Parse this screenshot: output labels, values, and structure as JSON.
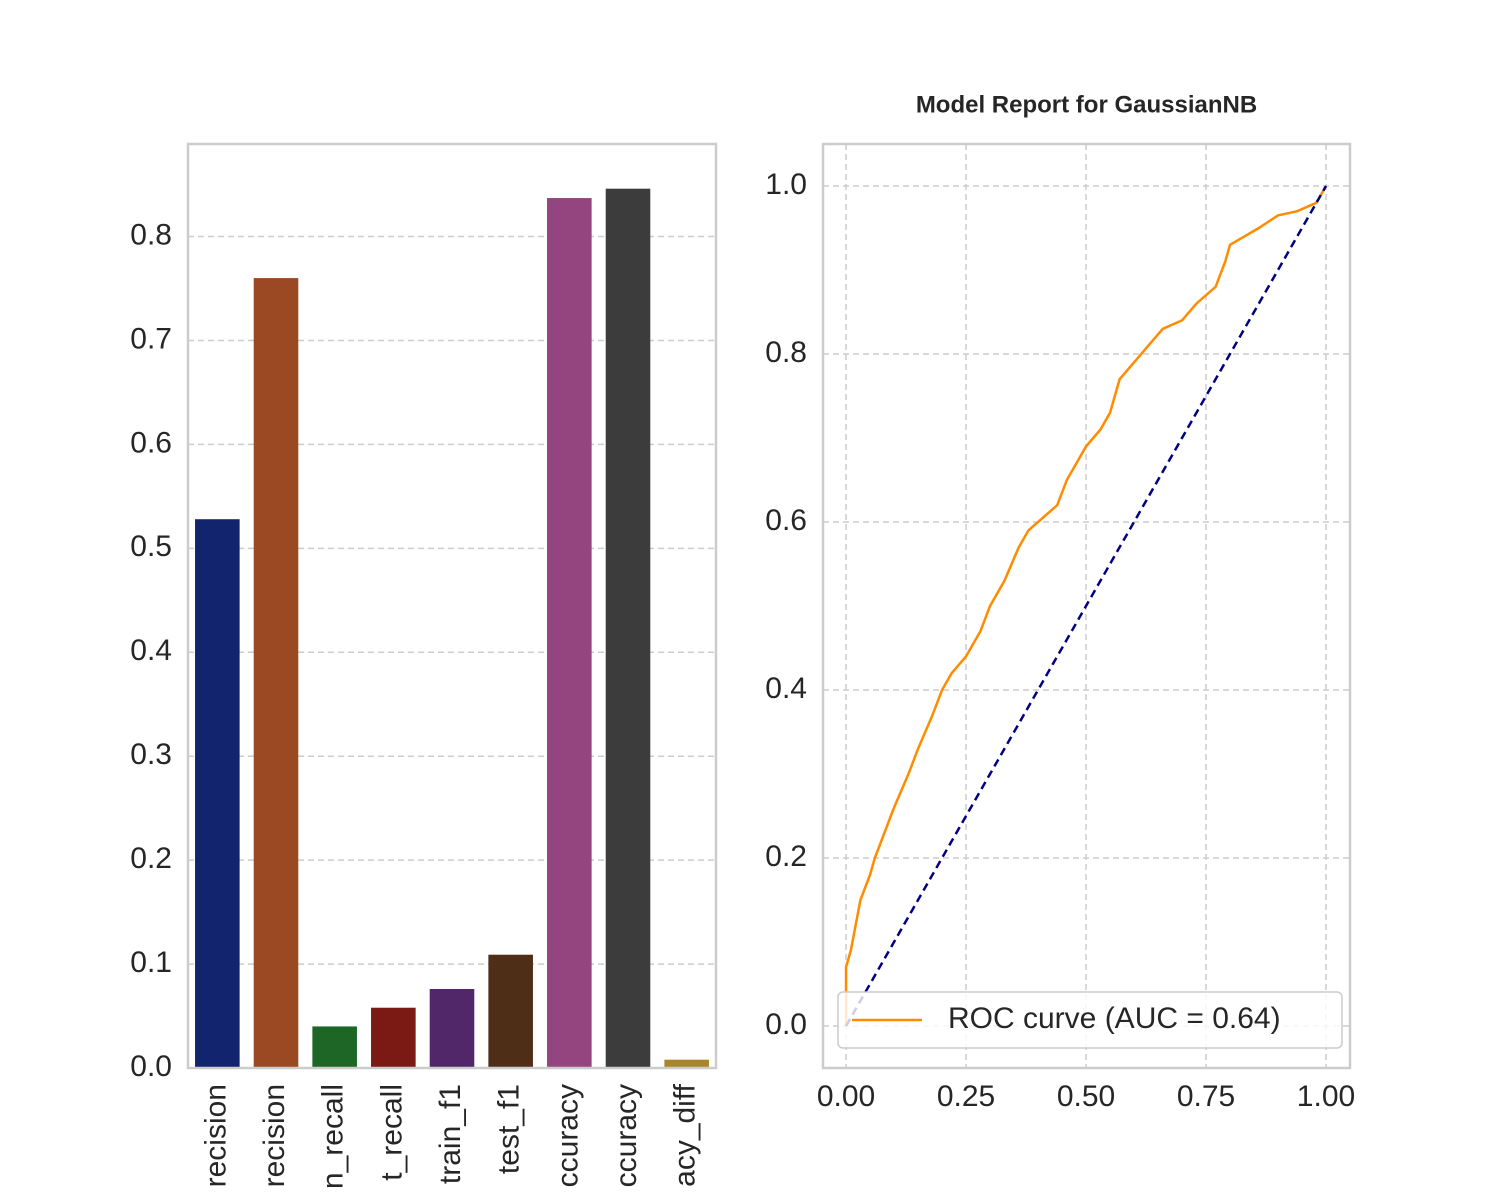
{
  "chart_data": [
    {
      "type": "bar",
      "categories": [
        "recision",
        "recision",
        "n_recall",
        "t_recall",
        "train_f1",
        "test_f1",
        "ccuracy",
        "ccuracy",
        "acy_diff"
      ],
      "values": [
        0.528,
        0.76,
        0.04,
        0.058,
        0.076,
        0.109,
        0.837,
        0.846,
        0.008
      ],
      "colors": [
        "#12246e",
        "#9b4923",
        "#1e6626",
        "#7b1914",
        "#52276a",
        "#4f2e18",
        "#94447e",
        "#3c3c3c",
        "#a8862b"
      ],
      "ylim": [
        0,
        0.889
      ],
      "yticks": [
        {
          "value": 0,
          "label": "0.0"
        },
        0.1,
        0.2,
        0.3,
        0.4,
        0.5,
        0.6,
        0.7,
        0.8
      ],
      "grid": "y"
    },
    {
      "type": "line",
      "title": "Model Report for GaussianNB",
      "series": [
        {
          "name": "ROC curve (AUC = 0.64)",
          "color": "#ff8c00",
          "x": [
            0,
            0,
            0.01,
            0.02,
            0.03,
            0.05,
            0.06,
            0.08,
            0.1,
            0.13,
            0.15,
            0.18,
            0.2,
            0.22,
            0.25,
            0.28,
            0.3,
            0.33,
            0.36,
            0.38,
            0.4,
            0.42,
            0.44,
            0.46,
            0.48,
            0.5,
            0.53,
            0.55,
            0.57,
            0.6,
            0.63,
            0.66,
            0.7,
            0.73,
            0.77,
            0.79,
            0.8,
            0.83,
            0.86,
            0.9,
            0.94,
            0.98,
            1
          ],
          "values": [
            0,
            0.07,
            0.09,
            0.12,
            0.15,
            0.18,
            0.2,
            0.23,
            0.26,
            0.3,
            0.33,
            0.37,
            0.4,
            0.42,
            0.44,
            0.47,
            0.5,
            0.53,
            0.57,
            0.59,
            0.6,
            0.61,
            0.62,
            0.65,
            0.67,
            0.69,
            0.71,
            0.73,
            0.77,
            0.79,
            0.81,
            0.83,
            0.84,
            0.86,
            0.88,
            0.91,
            0.93,
            0.94,
            0.95,
            0.965,
            0.97,
            0.98,
            1
          ]
        },
        {
          "color": "#000080",
          "dash": true,
          "x": [
            0,
            1
          ],
          "values": [
            0,
            1
          ]
        }
      ],
      "xlim": [
        -0.048,
        1.05
      ],
      "ylim": [
        -0.05,
        1.05
      ],
      "xticks": [
        {
          "value": 0,
          "label": "0.00"
        },
        0.25,
        {
          "value": 0.5,
          "label": "0.50"
        },
        0.75,
        {
          "value": 1,
          "label": "1.00"
        }
      ],
      "yticks": [
        {
          "value": 0,
          "label": "0.0"
        },
        0.2,
        0.4,
        0.6,
        0.8,
        {
          "value": 1,
          "label": "1.0"
        }
      ],
      "grid": "both",
      "legend": "lower right"
    }
  ]
}
